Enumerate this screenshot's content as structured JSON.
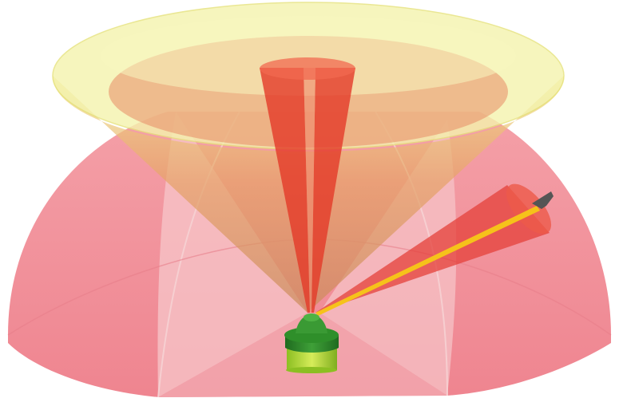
{
  "diagram": {
    "colors": {
      "background": "#ffffff",
      "dome_fill": "#f07a86",
      "dome_dark": "#e4606e",
      "dome_cutaway": "#f7c4c8",
      "cone_fill": "#f3f3a6",
      "cone_rim": "#e6e27a",
      "cone_inner": "#e48a5a",
      "beam_fill": "#ec4a32",
      "beam_edge": "#d6301f",
      "tracking_beam": "#f6c21a",
      "target": "#555555",
      "radar_base": "#b6d936",
      "radar_base_dark": "#7fae1f",
      "radar_body": "#2f8f2a",
      "radar_body_dark": "#1f6b1f",
      "radar_top": "#46a83a"
    },
    "parts": [
      {
        "name": "hemispherical-coverage-dome",
        "icon": "dome-shape"
      },
      {
        "name": "conical-search-volume",
        "icon": "inverted-cone-shape"
      },
      {
        "name": "vertical-radar-beam",
        "icon": "narrow-beam-shape"
      },
      {
        "name": "tracking-beam",
        "icon": "narrow-beam-shape"
      },
      {
        "name": "target-aircraft",
        "icon": "aircraft-icon"
      },
      {
        "name": "radar-antenna-unit",
        "icon": "radar-station-icon"
      }
    ]
  }
}
